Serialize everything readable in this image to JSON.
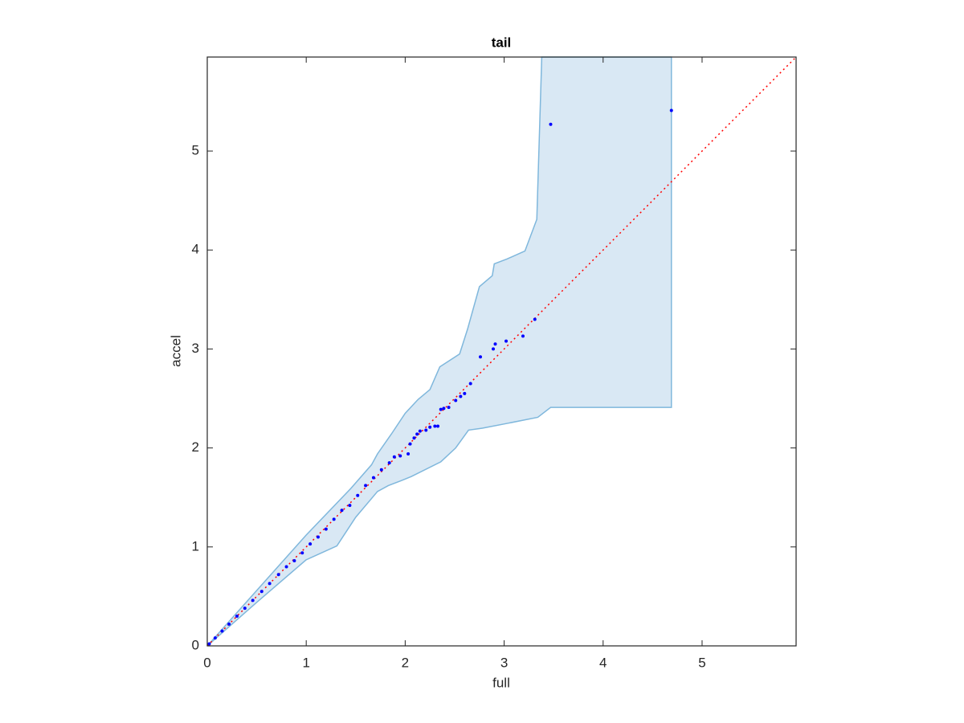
{
  "chart_data": {
    "type": "scatter",
    "title": "tail",
    "x_label": "full",
    "y_label": "accel",
    "xlim": [
      0,
      5.95
    ],
    "ylim": [
      0,
      5.95
    ],
    "xticks": [
      0,
      1,
      2,
      3,
      4,
      5
    ],
    "yticks": [
      0,
      1,
      2,
      3,
      4,
      5
    ],
    "grid": false,
    "band": {
      "color": "#d9e8f4",
      "edge_color": "#7fb7dc",
      "x": [
        0,
        0.5,
        1,
        1.45,
        1.66,
        1.72,
        1.86,
        2.0,
        2.13,
        2.25,
        2.35,
        2.55,
        2.63,
        2.75,
        2.88,
        2.9,
        3.03,
        3.21,
        3.33,
        3.38,
        4.69,
        4.69,
        3.47,
        3.34,
        3.04,
        2.78,
        2.64,
        2.51,
        2.36,
        2.06,
        1.96,
        1.83,
        1.72,
        1.5,
        1.31,
        1.0,
        0.5
      ],
      "y": [
        0,
        0.56,
        1.12,
        1.59,
        1.83,
        1.94,
        2.14,
        2.35,
        2.49,
        2.59,
        2.82,
        2.95,
        3.2,
        3.63,
        3.74,
        3.86,
        3.91,
        3.99,
        4.31,
        5.95,
        5.95,
        2.41,
        2.41,
        2.31,
        2.25,
        2.2,
        2.18,
        2.0,
        1.86,
        1.71,
        1.67,
        1.62,
        1.56,
        1.3,
        1.01,
        0.87,
        0.44
      ]
    },
    "reference_line": {
      "color": "#ff0000",
      "x": [
        0,
        5.95
      ],
      "y": [
        0,
        5.95
      ]
    },
    "points": {
      "color": "#0000ff",
      "x": [
        0.02,
        0.08,
        0.15,
        0.22,
        0.3,
        0.38,
        0.46,
        0.55,
        0.63,
        0.72,
        0.8,
        0.88,
        0.96,
        1.04,
        1.12,
        1.2,
        1.28,
        1.36,
        1.44,
        1.52,
        1.6,
        1.68,
        1.76,
        1.84,
        1.89,
        1.95,
        2.03,
        2.05,
        2.09,
        2.12,
        2.15,
        2.21,
        2.25,
        2.3,
        2.33,
        2.36,
        2.39,
        2.44,
        2.51,
        2.56,
        2.6,
        2.66,
        2.76,
        2.89,
        2.91,
        3.02,
        3.19,
        3.31,
        3.47,
        4.69
      ],
      "y": [
        0.02,
        0.08,
        0.15,
        0.22,
        0.3,
        0.38,
        0.46,
        0.55,
        0.63,
        0.72,
        0.8,
        0.86,
        0.94,
        1.03,
        1.1,
        1.18,
        1.28,
        1.37,
        1.42,
        1.52,
        1.62,
        1.7,
        1.78,
        1.85,
        1.91,
        1.92,
        1.94,
        2.04,
        2.1,
        2.14,
        2.17,
        2.18,
        2.21,
        2.22,
        2.22,
        2.39,
        2.4,
        2.41,
        2.48,
        2.52,
        2.55,
        2.65,
        2.92,
        3.0,
        3.05,
        3.08,
        3.13,
        3.3,
        5.27,
        5.41
      ]
    }
  }
}
